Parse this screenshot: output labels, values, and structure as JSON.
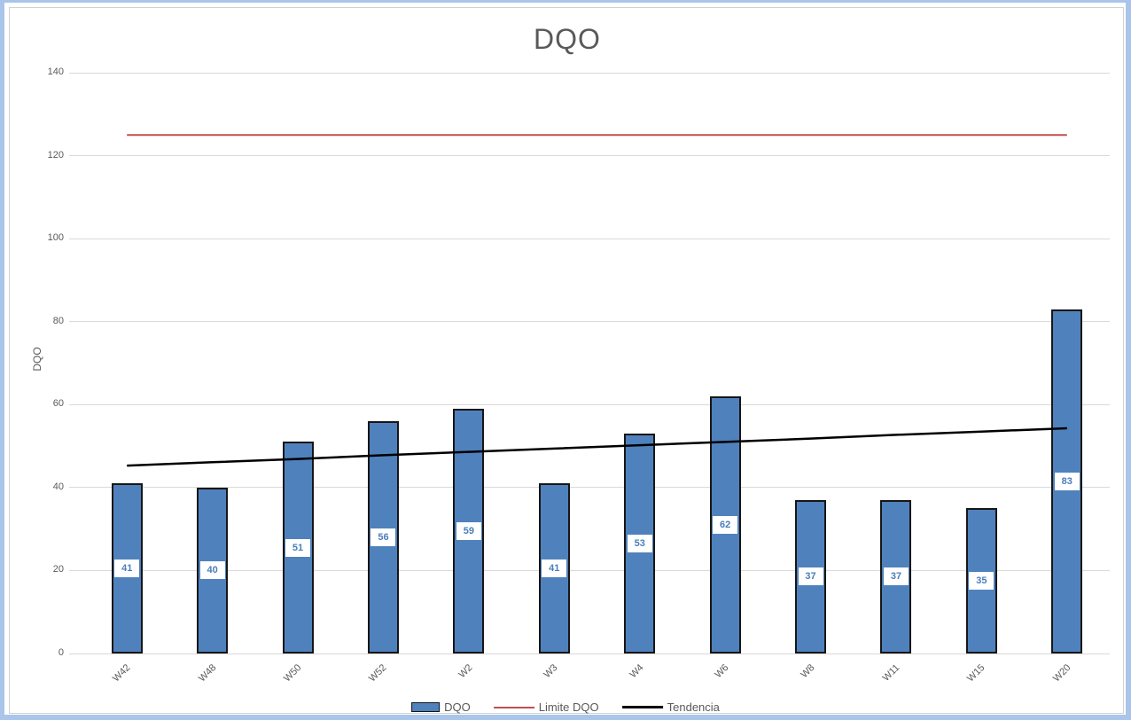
{
  "window": {
    "frame_color": "#a9c5ea",
    "panel_color": "#ffffff",
    "panel_border_color": "#d2d2d2"
  },
  "chart_data": {
    "type": "bar",
    "title": "DQO",
    "xlabel": "",
    "ylabel": "DQO",
    "categories": [
      "W42",
      "W48",
      "W50",
      "W52",
      "W2",
      "W3",
      "W4",
      "W6",
      "W8",
      "W11",
      "W15",
      "W20"
    ],
    "series": [
      {
        "name": "DQO",
        "kind": "bar",
        "color": "#4f81bd",
        "border_color": "#161616",
        "values": [
          41,
          40,
          51,
          56,
          59,
          41,
          53,
          62,
          37,
          37,
          35,
          83
        ],
        "data_labels": true
      },
      {
        "name": "Limite DQO",
        "kind": "line",
        "color": "#c0504d",
        "values": [
          125,
          125,
          125,
          125,
          125,
          125,
          125,
          125,
          125,
          125,
          125,
          125
        ]
      },
      {
        "name": "Tendencia",
        "kind": "line",
        "color": "#000000",
        "values": [
          45.3,
          46.1,
          46.9,
          47.8,
          48.6,
          49.4,
          50.2,
          51.0,
          51.8,
          52.7,
          53.5,
          54.3
        ]
      }
    ],
    "ylim": [
      0,
      140
    ],
    "yticks": [
      0,
      20,
      40,
      60,
      80,
      100,
      120,
      140
    ],
    "grid": true,
    "gridline_color": "#d9d9d9",
    "axis_text_color": "#595959",
    "title_color": "#595959",
    "data_label_color": "#4a7ebb",
    "legend_position": "bottom"
  }
}
